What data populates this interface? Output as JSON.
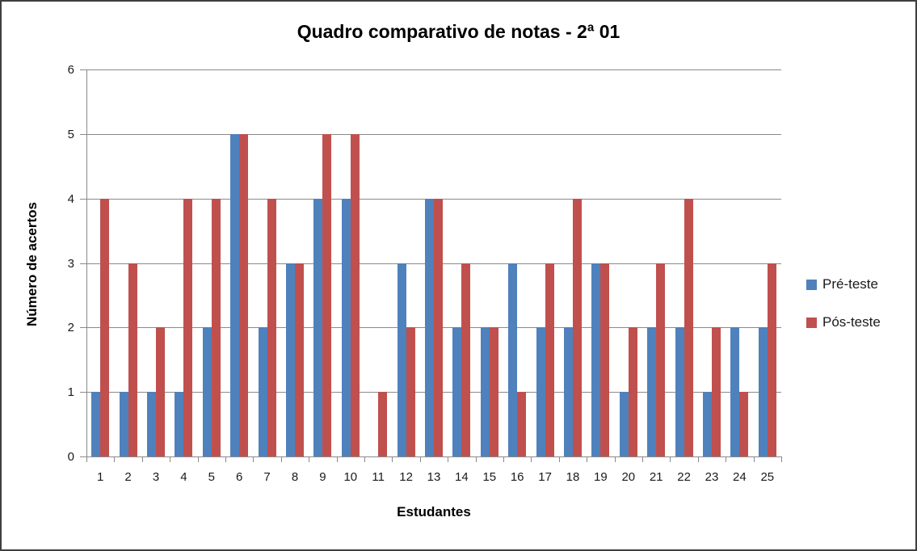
{
  "window": {
    "background": "#ffffff",
    "border_color": "#3f3f3f"
  },
  "chart_data": {
    "type": "bar",
    "title": "Quadro comparativo de notas - 2ª 01",
    "xlabel": "Estudantes",
    "ylabel": "Número de acertos",
    "ylim": [
      0,
      6
    ],
    "ytick_interval": 1,
    "yticks": [
      0,
      1,
      2,
      3,
      4,
      5,
      6
    ],
    "grid": true,
    "legend_position": "right",
    "categories": [
      "1",
      "2",
      "3",
      "4",
      "5",
      "6",
      "7",
      "8",
      "9",
      "10",
      "11",
      "12",
      "13",
      "14",
      "15",
      "16",
      "17",
      "18",
      "19",
      "20",
      "21",
      "22",
      "23",
      "24",
      "25"
    ],
    "series": [
      {
        "name": "Pré-teste",
        "color": "#4F81BD",
        "values": [
          1,
          1,
          1,
          1,
          2,
          5,
          2,
          3,
          4,
          4,
          0,
          3,
          4,
          2,
          2,
          3,
          2,
          2,
          3,
          1,
          2,
          2,
          1,
          2,
          2
        ]
      },
      {
        "name": "Pós-teste",
        "color": "#C0504D",
        "values": [
          4,
          3,
          2,
          4,
          4,
          5,
          4,
          3,
          5,
          5,
          1,
          2,
          4,
          3,
          2,
          1,
          3,
          4,
          3,
          2,
          3,
          4,
          2,
          1,
          3
        ]
      }
    ],
    "colors": {
      "gridline": "#8a8a8a",
      "axis": "#8a8a8a",
      "text": "#000000"
    }
  }
}
